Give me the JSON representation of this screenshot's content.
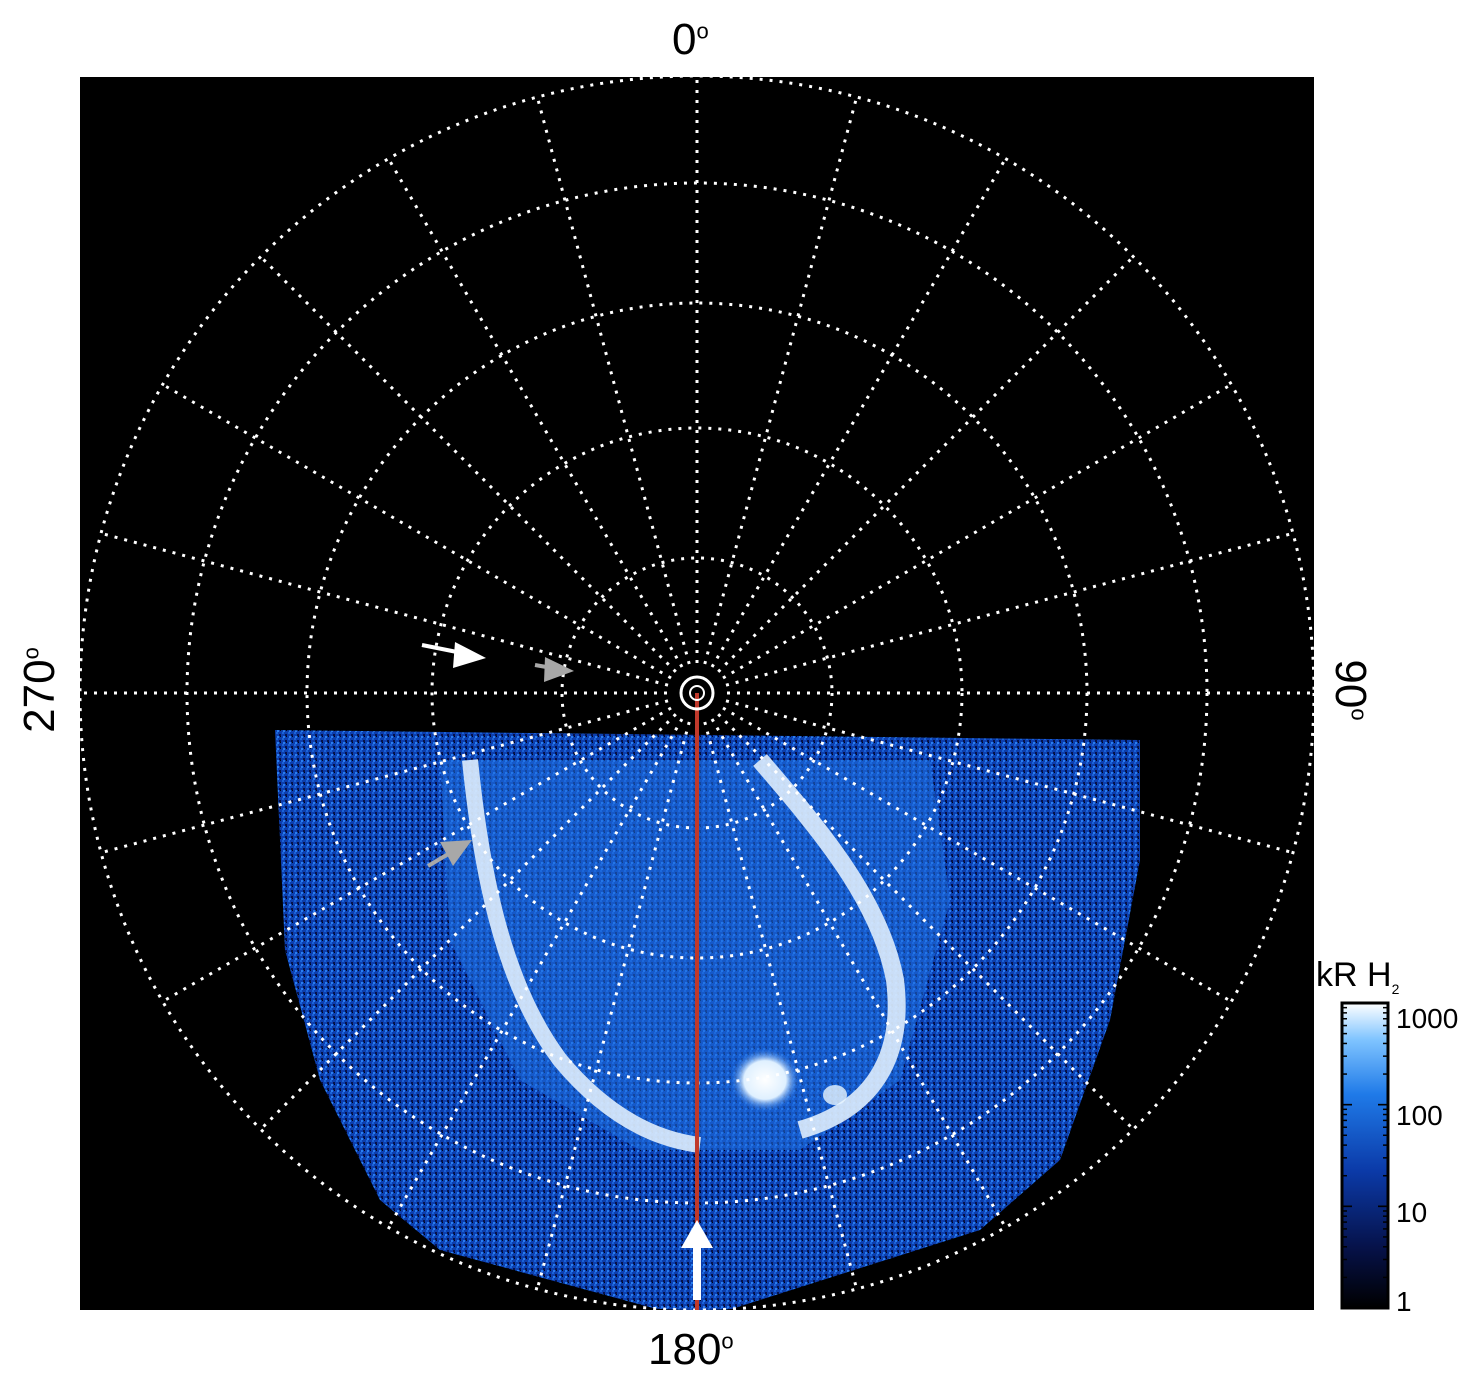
{
  "labels": {
    "top": "0",
    "bottom": "180",
    "left": "270",
    "right": "90",
    "degree": "o"
  },
  "colorbar": {
    "title": "kR H",
    "title_sub": "2",
    "ticks": [
      "1000",
      "100",
      "10",
      "1"
    ],
    "scale": "log"
  },
  "colors": {
    "background": "#000000",
    "grid": "#ffffff",
    "meridian_line": "#c0392b",
    "aurora_low": "#06124a",
    "aurora_mid": "#1f6fe0",
    "aurora_high": "#e8f4ff",
    "arrow_white": "#ffffff",
    "arrow_gray": "#a8a8a8"
  },
  "grid": {
    "meridian_step_deg": 15,
    "ring_count": 6,
    "style": "dotted"
  }
}
